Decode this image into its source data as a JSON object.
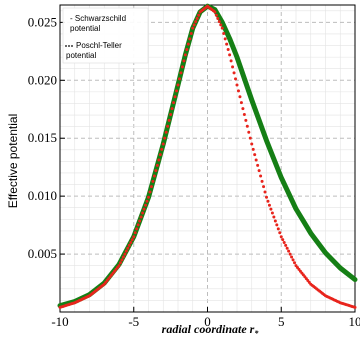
{
  "chart_data": {
    "type": "line",
    "xlabel": "radial coordinate r",
    "xlabel_subscript": "*",
    "ylabel": "Effective potential",
    "xlim": [
      -10,
      10
    ],
    "ylim": [
      0,
      0.0265
    ],
    "x_ticks": [
      -10,
      -5,
      0,
      5,
      10
    ],
    "y_ticks": [
      0.005,
      0.01,
      0.015,
      0.02,
      0.025
    ],
    "y_tick_labels": [
      "0.005",
      "0.010",
      "0.015",
      "0.020",
      "0.025"
    ],
    "grid": true,
    "legend_position": "top-left",
    "series": [
      {
        "name": "Schwarzschild potential",
        "legend_lines": [
          "- Schwarzschild",
          "potential"
        ],
        "color": "#157f15",
        "style": "thick-solid",
        "x": [
          -10,
          -9,
          -8,
          -7,
          -6,
          -5,
          -4,
          -3,
          -2,
          -1.5,
          -1,
          -0.5,
          0,
          0.5,
          1,
          1.5,
          2,
          3,
          4,
          5,
          6,
          7,
          8,
          9,
          10
        ],
        "y": [
          0.00055,
          0.0009,
          0.0015,
          0.0025,
          0.0041,
          0.0065,
          0.0099,
          0.0145,
          0.0196,
          0.0222,
          0.0245,
          0.0259,
          0.0264,
          0.0261,
          0.025,
          0.0236,
          0.022,
          0.0183,
          0.0148,
          0.0116,
          0.0089,
          0.0068,
          0.0051,
          0.0038,
          0.0028
        ]
      },
      {
        "name": "Poschl-Teller potential",
        "legend_lines": [
          "Poschl-Teller",
          "potential"
        ],
        "color": "#e8241c",
        "style": "dotted",
        "x": [
          -10,
          -9,
          -8,
          -7,
          -6,
          -5,
          -4,
          -3,
          -2,
          -1.5,
          -1,
          -0.5,
          0,
          0.5,
          1,
          1.5,
          2,
          3,
          4,
          5,
          6,
          7,
          8,
          9,
          10
        ],
        "y": [
          0.0004,
          0.0008,
          0.0014,
          0.0024,
          0.004,
          0.0065,
          0.0099,
          0.0145,
          0.0196,
          0.0222,
          0.0245,
          0.0259,
          0.0264,
          0.0259,
          0.0245,
          0.0222,
          0.0196,
          0.0145,
          0.0099,
          0.0065,
          0.004,
          0.0024,
          0.0014,
          0.0008,
          0.0004
        ]
      }
    ]
  }
}
